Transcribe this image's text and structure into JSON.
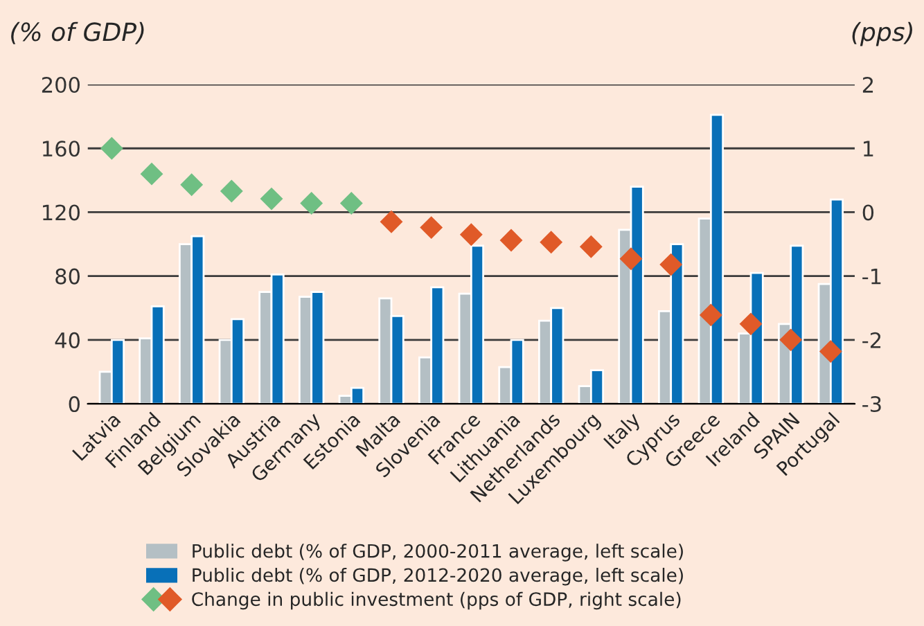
{
  "chart_data": {
    "type": "bar",
    "ylabel": "(% of GDP)",
    "y2label": "(pps)",
    "categories": [
      "Latvia",
      "Finland",
      "Belgium",
      "Slovakia",
      "Austria",
      "Germany",
      "Estonia",
      "Malta",
      "Slovenia",
      "France",
      "Lithuania",
      "Netherlands",
      "Luxembourg",
      "Italy",
      "Cyprus",
      "Greece",
      "Ireland",
      "SPAIN",
      "Portugal"
    ],
    "series": [
      {
        "name": "Public debt (% of GDP, 2000-2011 average, left scale)",
        "color": "#b4bfc4",
        "values": [
          20,
          41,
          100,
          40,
          70,
          67,
          5,
          66,
          29,
          69,
          23,
          52,
          11,
          109,
          58,
          116,
          44,
          50,
          75
        ]
      },
      {
        "name": "Public debt (% of GDP, 2012-2020 average, left scale)",
        "color": "#0870b8",
        "values": [
          40,
          61,
          105,
          53,
          81,
          70,
          10,
          55,
          73,
          99,
          40,
          60,
          21,
          136,
          100,
          181,
          82,
          99,
          128
        ]
      },
      {
        "name": "Change in public investment (pps of GDP, right scale)",
        "type": "scatter",
        "axis": "y2",
        "marker": "diamond",
        "colors": [
          "#6fbf83",
          "#6fbf83",
          "#6fbf83",
          "#6fbf83",
          "#6fbf83",
          "#6fbf83",
          "#6fbf83",
          "#e05a28",
          "#e05a28",
          "#e05a28",
          "#e05a28",
          "#e05a28",
          "#e05a28",
          "#e05a28",
          "#e05a28",
          "#e05a28",
          "#e05a28",
          "#e05a28",
          "#e05a28"
        ],
        "values": [
          1.0,
          0.6,
          0.43,
          0.33,
          0.21,
          0.14,
          0.14,
          -0.15,
          -0.24,
          -0.35,
          -0.44,
          -0.47,
          -0.54,
          -0.73,
          -0.82,
          -1.61,
          -1.75,
          -2.0,
          -2.18
        ]
      }
    ],
    "ylim": [
      0,
      200
    ],
    "yticks": [
      0,
      40,
      80,
      120,
      160,
      200
    ],
    "y2lim": [
      -3,
      2
    ],
    "y2ticks": [
      {
        "value": -3,
        "label": "-3"
      },
      {
        "value": -2,
        "label": "-2"
      },
      {
        "value": -1,
        "label": "-1"
      },
      0,
      1,
      2
    ],
    "grid": "y",
    "legend": "bottom"
  }
}
